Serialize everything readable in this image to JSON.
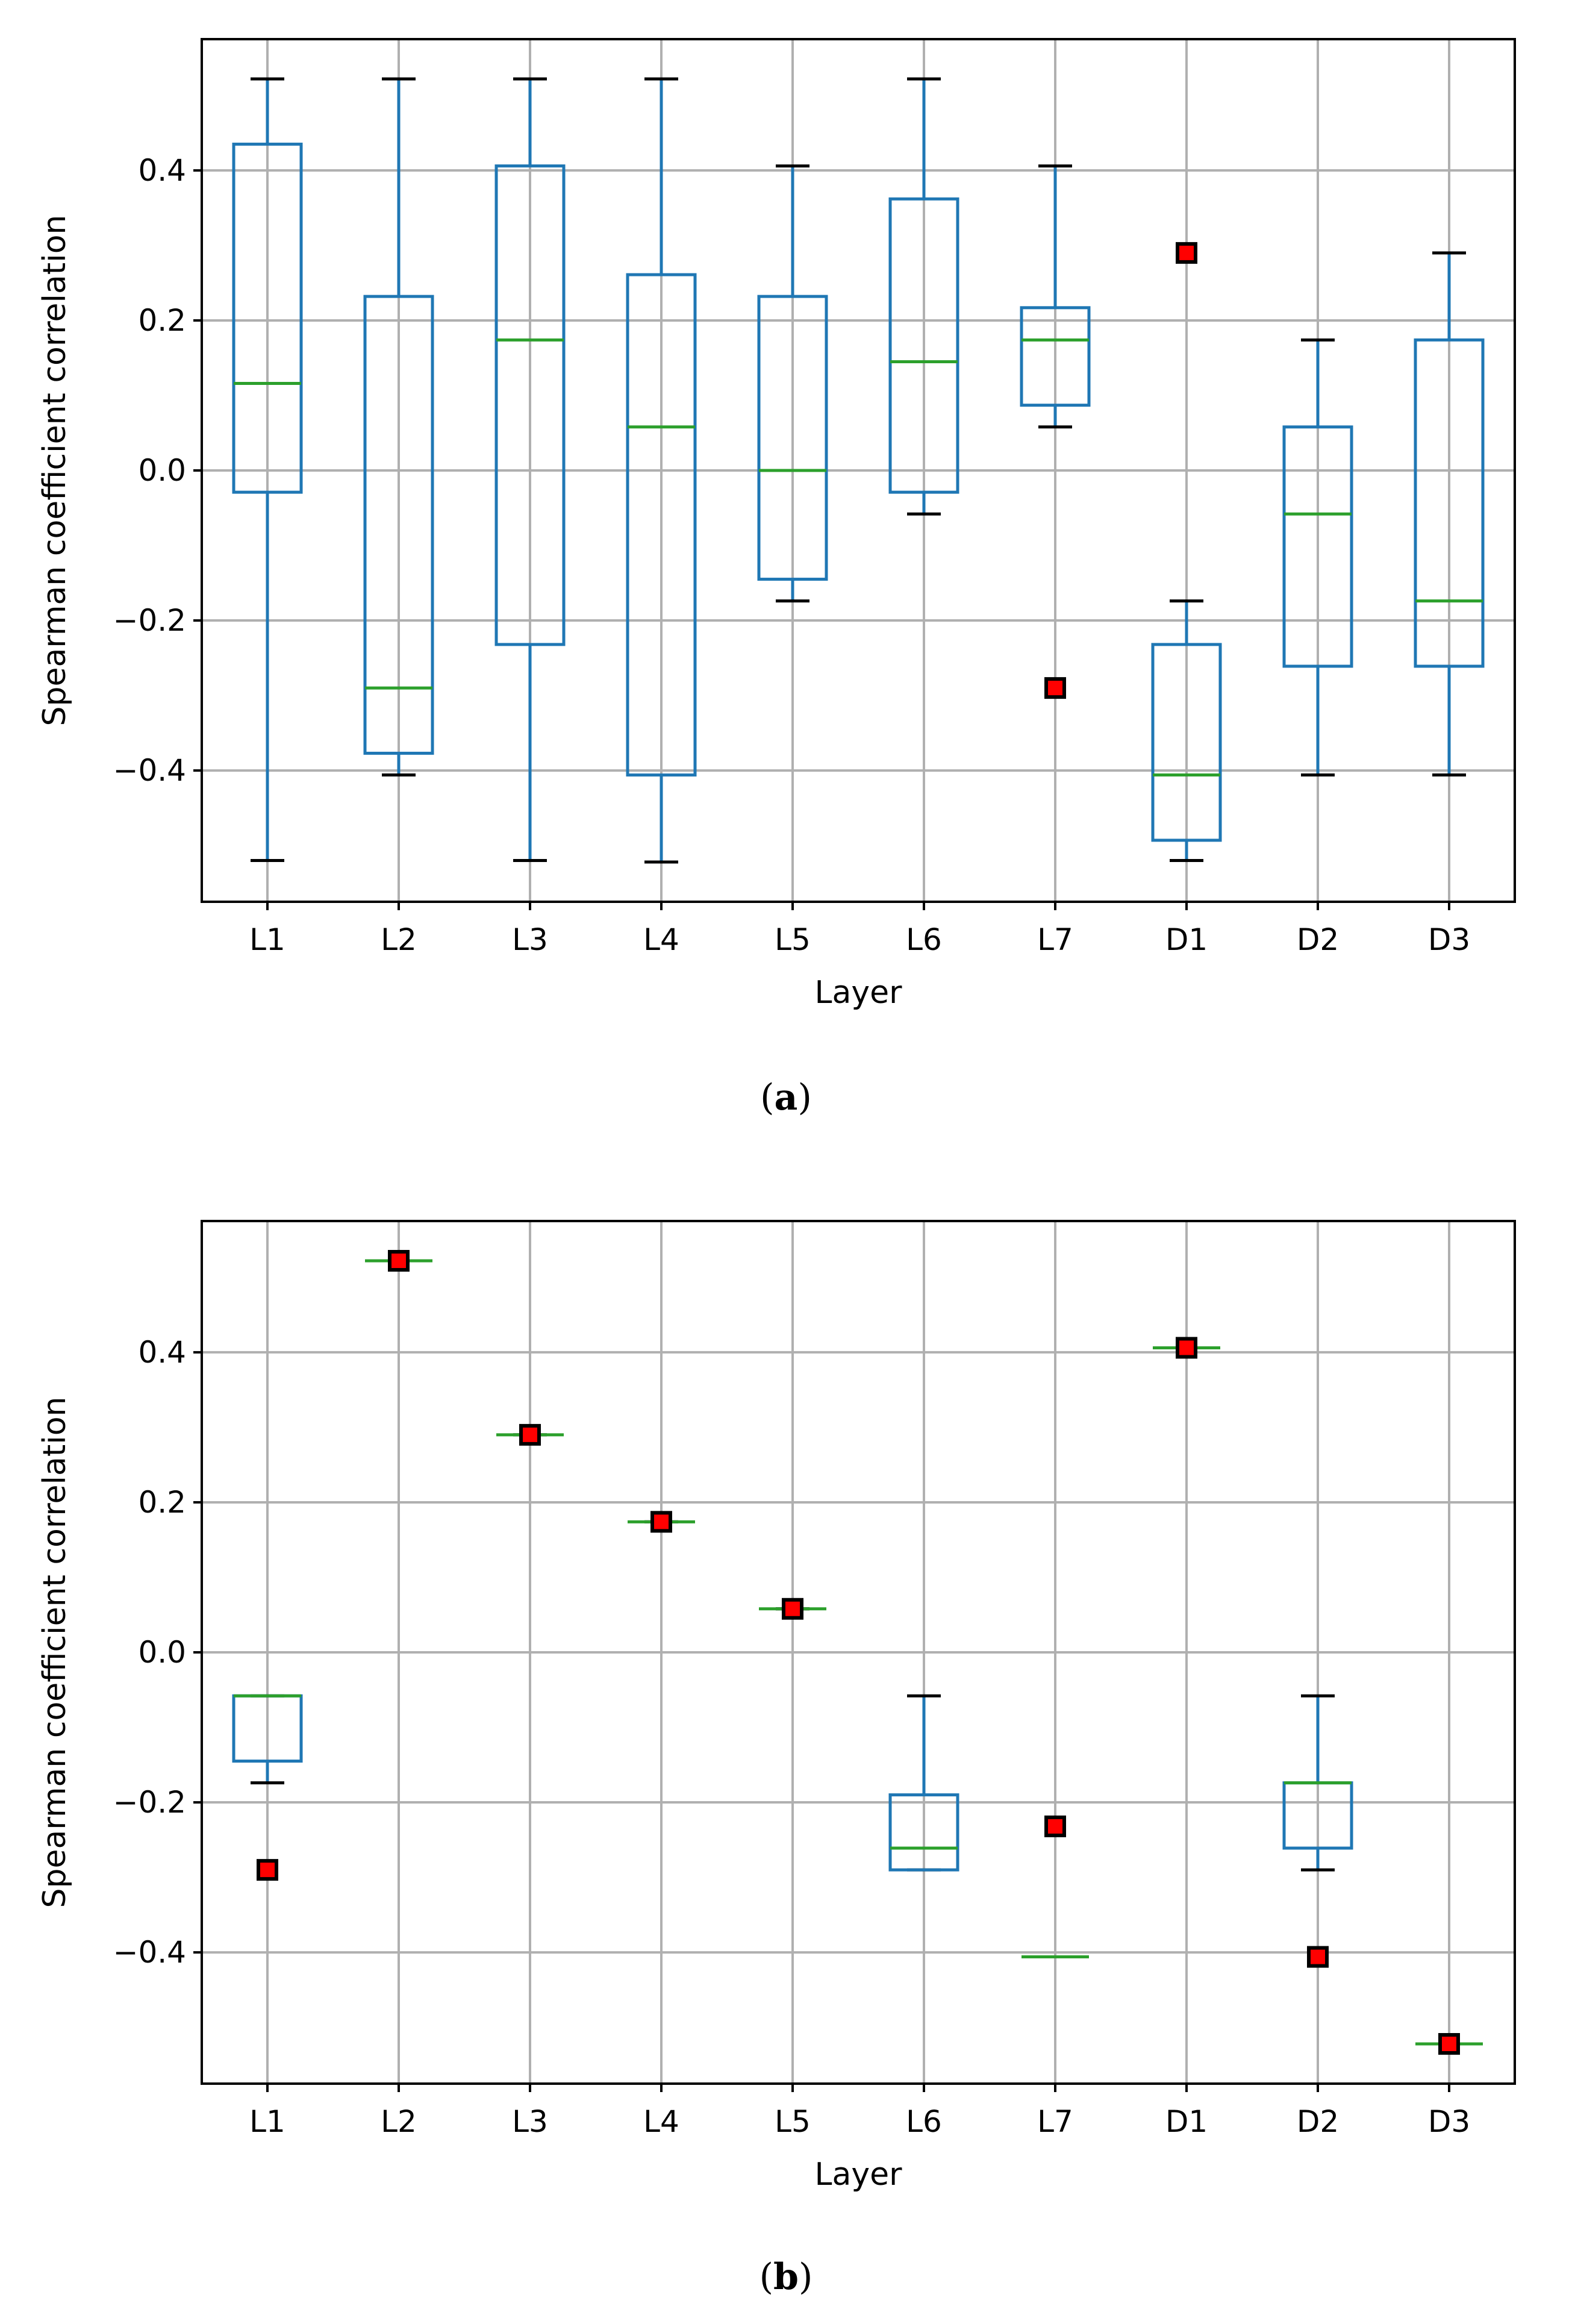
{
  "chart_data": [
    {
      "type": "boxplot",
      "panel": "a",
      "caption_letter": "a",
      "xlabel": "Layer",
      "ylabel": "Spearman coefficient correlation",
      "ylim": [
        -0.575,
        0.575
      ],
      "yticks": [
        -0.4,
        -0.2,
        0.0,
        0.2,
        0.4
      ],
      "ytick_labels": [
        "−0.4",
        "−0.2",
        "0.0",
        "0.2",
        "0.4"
      ],
      "grid": true,
      "categories": [
        "L1",
        "L2",
        "L3",
        "L4",
        "L5",
        "L6",
        "L7",
        "D1",
        "D2",
        "D3"
      ],
      "boxes": [
        {
          "whislo": -0.52,
          "q1": -0.029,
          "med": 0.116,
          "q3": 0.435,
          "whishi": 0.522,
          "fliers": []
        },
        {
          "whislo": -0.406,
          "q1": -0.377,
          "med": -0.29,
          "q3": 0.232,
          "whishi": 0.522,
          "fliers": []
        },
        {
          "whislo": -0.52,
          "q1": -0.232,
          "med": 0.174,
          "q3": 0.406,
          "whishi": 0.522,
          "fliers": []
        },
        {
          "whislo": -0.522,
          "q1": -0.406,
          "med": 0.058,
          "q3": 0.261,
          "whishi": 0.522,
          "fliers": []
        },
        {
          "whislo": -0.174,
          "q1": -0.145,
          "med": 0.0,
          "q3": 0.232,
          "whishi": 0.406,
          "fliers": []
        },
        {
          "whislo": -0.058,
          "q1": -0.029,
          "med": 0.145,
          "q3": 0.362,
          "whishi": 0.522,
          "fliers": []
        },
        {
          "whislo": 0.058,
          "q1": 0.087,
          "med": 0.174,
          "q3": 0.217,
          "whishi": 0.406,
          "fliers": [
            -0.29
          ]
        },
        {
          "whislo": -0.52,
          "q1": -0.493,
          "med": -0.406,
          "q3": -0.232,
          "whishi": -0.174,
          "fliers": [
            0.29
          ]
        },
        {
          "whislo": -0.406,
          "q1": -0.261,
          "med": -0.058,
          "q3": 0.058,
          "whishi": 0.174,
          "fliers": []
        },
        {
          "whislo": -0.406,
          "q1": -0.261,
          "med": -0.174,
          "q3": 0.174,
          "whishi": 0.29,
          "fliers": []
        }
      ]
    },
    {
      "type": "boxplot",
      "panel": "b",
      "caption_letter": "b",
      "xlabel": "Layer",
      "ylabel": "Spearman coefficient correlation",
      "ylim": [
        -0.575,
        0.575
      ],
      "yticks": [
        -0.4,
        -0.2,
        0.0,
        0.2,
        0.4
      ],
      "ytick_labels": [
        "−0.4",
        "−0.2",
        "0.0",
        "0.2",
        "0.4"
      ],
      "grid": true,
      "categories": [
        "L1",
        "L2",
        "L3",
        "L4",
        "L5",
        "L6",
        "L7",
        "D1",
        "D2",
        "D3"
      ],
      "boxes": [
        {
          "whislo": -0.174,
          "q1": -0.145,
          "med": -0.058,
          "q3": -0.058,
          "whishi": -0.058,
          "fliers": [
            -0.29
          ]
        },
        {
          "whislo": 0.522,
          "q1": 0.522,
          "med": 0.522,
          "q3": 0.522,
          "whishi": 0.522,
          "fliers": [
            0.522
          ]
        },
        {
          "whislo": 0.29,
          "q1": 0.29,
          "med": 0.29,
          "q3": 0.29,
          "whishi": 0.29,
          "fliers": [
            0.29
          ]
        },
        {
          "whislo": 0.174,
          "q1": 0.174,
          "med": 0.174,
          "q3": 0.174,
          "whishi": 0.174,
          "fliers": [
            0.174
          ]
        },
        {
          "whislo": 0.058,
          "q1": 0.058,
          "med": 0.058,
          "q3": 0.058,
          "whishi": 0.058,
          "fliers": [
            0.058
          ]
        },
        {
          "whislo": -0.29,
          "q1": -0.29,
          "med": -0.261,
          "q3": -0.19,
          "whishi": -0.058,
          "fliers": []
        },
        {
          "whislo": -0.406,
          "q1": -0.406,
          "med": -0.406,
          "q3": -0.406,
          "whishi": -0.406,
          "fliers": [
            -0.232
          ]
        },
        {
          "whislo": 0.406,
          "q1": 0.406,
          "med": 0.406,
          "q3": 0.406,
          "whishi": 0.406,
          "fliers": [
            0.406
          ]
        },
        {
          "whislo": -0.29,
          "q1": -0.261,
          "med": -0.174,
          "q3": -0.174,
          "whishi": -0.058,
          "fliers": [
            -0.406
          ]
        },
        {
          "whislo": -0.522,
          "q1": -0.522,
          "med": -0.522,
          "q3": -0.522,
          "whishi": -0.522,
          "fliers": [
            -0.522
          ]
        }
      ]
    }
  ]
}
